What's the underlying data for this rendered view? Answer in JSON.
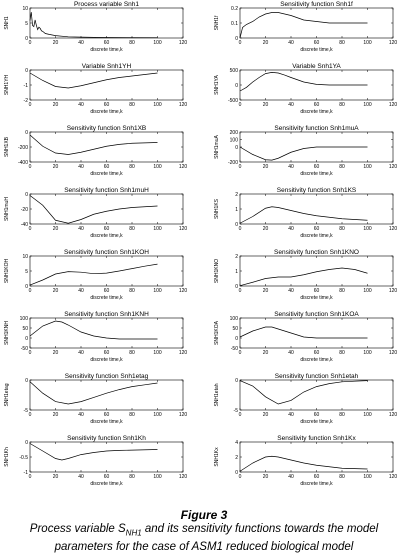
{
  "colors": {
    "line": "#000000",
    "axis": "#000000",
    "background": "#ffffff"
  },
  "caption": {
    "title": "Figure 3",
    "line1_before": "Process variable S",
    "line1_sub": "NH1",
    "line1_after": " and its sensitivity functions towards the model",
    "line2": "parameters for the case of ASM1 reduced biological model"
  },
  "chart_data": [
    {
      "type": "line",
      "title": "Process variable Snh1",
      "xlabel": "discrete time,k",
      "ylabel": "SNH1",
      "xlim": [
        0,
        120
      ],
      "ylim": [
        0,
        10
      ],
      "xticks": [
        0,
        20,
        40,
        60,
        80,
        100,
        120
      ],
      "yticks": [
        0,
        5,
        10
      ],
      "series": [
        {
          "x": [
            0,
            1,
            2,
            3,
            4,
            5,
            6,
            7,
            8,
            9,
            10,
            12,
            15,
            20,
            30,
            50,
            100
          ],
          "y": [
            5.8,
            8.6,
            4.2,
            3.8,
            6.0,
            4.2,
            2.8,
            3.6,
            3.2,
            2.4,
            2.2,
            1.5,
            1.2,
            0.8,
            0.4,
            0.2,
            0.1
          ]
        }
      ]
    },
    {
      "type": "line",
      "title": "Sensitivity function Snh1f",
      "xlabel": "discrete time,k",
      "ylabel": "SNH1f",
      "xlim": [
        0,
        120
      ],
      "ylim": [
        0,
        0.2
      ],
      "xticks": [
        0,
        20,
        40,
        60,
        80,
        100,
        120
      ],
      "yticks": [
        0,
        0.1,
        0.2
      ],
      "series": [
        {
          "x": [
            0,
            2,
            5,
            10,
            15,
            20,
            25,
            30,
            35,
            40,
            50,
            60,
            70,
            80,
            100
          ],
          "y": [
            0.0,
            0.07,
            0.09,
            0.11,
            0.14,
            0.16,
            0.17,
            0.17,
            0.16,
            0.15,
            0.12,
            0.11,
            0.1,
            0.1,
            0.1
          ]
        }
      ]
    },
    {
      "type": "line",
      "title": "Variable Snh1YH",
      "xlabel": "discrete time,k",
      "ylabel": "SNH1YH",
      "xlim": [
        0,
        120
      ],
      "ylim": [
        -2,
        0
      ],
      "xticks": [
        0,
        20,
        40,
        60,
        80,
        100,
        120
      ],
      "yticks": [
        -2,
        -1,
        0
      ],
      "series": [
        {
          "x": [
            0,
            10,
            20,
            30,
            40,
            50,
            60,
            70,
            80,
            90,
            100
          ],
          "y": [
            -0.2,
            -0.7,
            -1.1,
            -1.2,
            -1.05,
            -0.85,
            -0.65,
            -0.5,
            -0.4,
            -0.3,
            -0.2
          ]
        }
      ]
    },
    {
      "type": "line",
      "title": "Variable Snh1YA",
      "xlabel": "discrete time,k",
      "ylabel": "SNH1YA",
      "xlim": [
        0,
        120
      ],
      "ylim": [
        -500,
        500
      ],
      "xticks": [
        0,
        20,
        40,
        60,
        80,
        100,
        120
      ],
      "yticks": [
        -500,
        0,
        500
      ],
      "series": [
        {
          "x": [
            0,
            5,
            10,
            15,
            20,
            25,
            30,
            35,
            40,
            50,
            60,
            70,
            80,
            100
          ],
          "y": [
            -200,
            -80,
            100,
            250,
            380,
            420,
            400,
            330,
            250,
            100,
            20,
            0,
            0,
            0
          ]
        }
      ]
    },
    {
      "type": "line",
      "title": "Sensitivity function Snh1XB",
      "xlabel": "discrete time,k",
      "ylabel": "SNH1XB",
      "xlim": [
        0,
        120
      ],
      "ylim": [
        -400,
        0
      ],
      "xticks": [
        0,
        20,
        40,
        60,
        80,
        100,
        120
      ],
      "yticks": [
        -400,
        -200,
        0
      ],
      "series": [
        {
          "x": [
            0,
            10,
            20,
            30,
            40,
            50,
            60,
            70,
            80,
            100
          ],
          "y": [
            -40,
            -190,
            -280,
            -300,
            -270,
            -230,
            -190,
            -165,
            -150,
            -140
          ]
        }
      ]
    },
    {
      "type": "line",
      "title": "Sensitivity function Snh1muA",
      "xlabel": "discrete time,k",
      "ylabel": "SNH1muA",
      "xlim": [
        0,
        120
      ],
      "ylim": [
        -200,
        200
      ],
      "xticks": [
        0,
        20,
        40,
        60,
        80,
        100,
        120
      ],
      "yticks": [
        -200,
        0,
        100,
        200
      ],
      "series": [
        {
          "x": [
            0,
            10,
            20,
            25,
            30,
            40,
            50,
            60,
            70,
            80,
            100
          ],
          "y": [
            0,
            -100,
            -170,
            -175,
            -150,
            -70,
            -20,
            0,
            0,
            0,
            0
          ]
        }
      ]
    },
    {
      "type": "line",
      "title": "Sensitivity function Snh1muH",
      "xlabel": "discrete time,k",
      "ylabel": "SNH1muH",
      "xlim": [
        0,
        120
      ],
      "ylim": [
        -40,
        0
      ],
      "xticks": [
        0,
        20,
        40,
        60,
        80,
        100,
        120
      ],
      "yticks": [
        -40,
        -20,
        0
      ],
      "series": [
        {
          "x": [
            0,
            10,
            20,
            30,
            40,
            50,
            60,
            70,
            80,
            90,
            100
          ],
          "y": [
            -2,
            -15,
            -35,
            -39,
            -34,
            -27,
            -23,
            -20,
            -18,
            -17,
            -16
          ]
        }
      ]
    },
    {
      "type": "line",
      "title": "Sensitivity function Snh1KS",
      "xlabel": "discrete time,k",
      "ylabel": "SNH1KS",
      "xlim": [
        0,
        120
      ],
      "ylim": [
        0,
        2
      ],
      "xticks": [
        0,
        20,
        40,
        60,
        80,
        100,
        120
      ],
      "yticks": [
        0,
        1,
        2
      ],
      "series": [
        {
          "x": [
            0,
            10,
            20,
            25,
            30,
            40,
            50,
            60,
            70,
            80,
            100
          ],
          "y": [
            0.05,
            0.5,
            1.05,
            1.15,
            1.1,
            0.9,
            0.7,
            0.55,
            0.45,
            0.35,
            0.25
          ]
        }
      ]
    },
    {
      "type": "line",
      "title": "Sensitivity function Snh1KOH",
      "xlabel": "discrete time,k",
      "ylabel": "SNH1KOH",
      "xlim": [
        0,
        120
      ],
      "ylim": [
        0,
        10
      ],
      "xticks": [
        0,
        20,
        40,
        60,
        80,
        100,
        120
      ],
      "yticks": [
        0,
        5,
        10
      ],
      "series": [
        {
          "x": [
            0,
            10,
            20,
            30,
            40,
            50,
            60,
            70,
            80,
            90,
            100
          ],
          "y": [
            0.3,
            2.0,
            4.0,
            4.8,
            4.6,
            4.1,
            4.3,
            5.0,
            5.8,
            6.6,
            7.3
          ]
        }
      ]
    },
    {
      "type": "line",
      "title": "Sensitivity function Snh1KNO",
      "xlabel": "discrete time,k",
      "ylabel": "SNH1KNO",
      "xlim": [
        0,
        120
      ],
      "ylim": [
        0,
        2
      ],
      "xticks": [
        0,
        20,
        40,
        60,
        80,
        100,
        120
      ],
      "yticks": [
        0,
        1,
        2
      ],
      "series": [
        {
          "x": [
            0,
            10,
            20,
            30,
            40,
            50,
            60,
            70,
            80,
            90,
            100
          ],
          "y": [
            0.02,
            0.25,
            0.5,
            0.6,
            0.6,
            0.75,
            0.95,
            1.1,
            1.2,
            1.1,
            0.85
          ]
        }
      ]
    },
    {
      "type": "line",
      "title": "Sensitivity function Snh1KNH",
      "xlabel": "discrete time,k",
      "ylabel": "SNH1KNH",
      "xlim": [
        0,
        120
      ],
      "ylim": [
        -50,
        100
      ],
      "xticks": [
        0,
        20,
        40,
        60,
        80,
        100,
        120
      ],
      "yticks": [
        -50,
        0,
        50,
        100
      ],
      "series": [
        {
          "x": [
            0,
            10,
            20,
            25,
            30,
            40,
            50,
            60,
            70,
            80,
            100
          ],
          "y": [
            10,
            60,
            85,
            80,
            65,
            30,
            10,
            0,
            -5,
            -5,
            -5
          ]
        }
      ]
    },
    {
      "type": "line",
      "title": "Sensitivity function Snh1KOA",
      "xlabel": "discrete time,k",
      "ylabel": "SNH1KOA",
      "xlim": [
        0,
        120
      ],
      "ylim": [
        -50,
        100
      ],
      "xticks": [
        0,
        20,
        40,
        60,
        80,
        100,
        120
      ],
      "yticks": [
        -50,
        0,
        50,
        100
      ],
      "series": [
        {
          "x": [
            0,
            10,
            20,
            25,
            30,
            40,
            50,
            60,
            70,
            80,
            100
          ],
          "y": [
            5,
            35,
            55,
            55,
            45,
            25,
            5,
            0,
            0,
            0,
            0
          ]
        }
      ]
    },
    {
      "type": "line",
      "title": "Sensitivity function Snh1etag",
      "xlabel": "discrete time,k",
      "ylabel": "SNH1etag",
      "xlim": [
        0,
        120
      ],
      "ylim": [
        -5,
        0
      ],
      "xticks": [
        0,
        20,
        40,
        60,
        80,
        100,
        120
      ],
      "yticks": [
        -5,
        0
      ],
      "series": [
        {
          "x": [
            0,
            10,
            20,
            30,
            40,
            50,
            60,
            70,
            80,
            90,
            100
          ],
          "y": [
            -0.3,
            -2.2,
            -3.6,
            -4.0,
            -3.6,
            -2.9,
            -2.2,
            -1.6,
            -1.1,
            -0.8,
            -0.5
          ]
        }
      ]
    },
    {
      "type": "line",
      "title": "Sensitivity function Snh1etah",
      "xlabel": "discrete time,k",
      "ylabel": "SNH1etah",
      "xlim": [
        0,
        120
      ],
      "ylim": [
        -5,
        0
      ],
      "xticks": [
        0,
        20,
        40,
        60,
        80,
        100,
        120
      ],
      "yticks": [
        -5,
        0
      ],
      "series": [
        {
          "x": [
            0,
            10,
            20,
            30,
            40,
            50,
            60,
            70,
            80,
            90,
            100
          ],
          "y": [
            -0.1,
            -1.0,
            -2.8,
            -4.0,
            -3.4,
            -2.0,
            -1.1,
            -0.6,
            -0.3,
            -0.2,
            -0.1
          ]
        }
      ]
    },
    {
      "type": "line",
      "title": "Sensitivity function Snh1Kh",
      "xlabel": "discrete time,k",
      "ylabel": "SNH1Kh",
      "xlim": [
        0,
        120
      ],
      "ylim": [
        -1,
        0
      ],
      "xticks": [
        0,
        20,
        40,
        60,
        80,
        100,
        120
      ],
      "yticks": [
        -1,
        -0.5,
        0
      ],
      "series": [
        {
          "x": [
            0,
            10,
            20,
            25,
            30,
            40,
            50,
            60,
            70,
            80,
            100
          ],
          "y": [
            -0.05,
            -0.3,
            -0.55,
            -0.6,
            -0.55,
            -0.42,
            -0.35,
            -0.3,
            -0.28,
            -0.27,
            -0.25
          ]
        }
      ]
    },
    {
      "type": "line",
      "title": "Sensitivity function Snh1Kx",
      "xlabel": "discrete time,k",
      "ylabel": "SNH1Kx",
      "xlim": [
        0,
        120
      ],
      "ylim": [
        0,
        4
      ],
      "xticks": [
        0,
        20,
        40,
        60,
        80,
        100,
        120
      ],
      "yticks": [
        0,
        2,
        4
      ],
      "series": [
        {
          "x": [
            0,
            10,
            20,
            25,
            30,
            40,
            50,
            60,
            70,
            80,
            100
          ],
          "y": [
            0.1,
            1.2,
            2.0,
            2.1,
            2.0,
            1.6,
            1.2,
            0.9,
            0.7,
            0.5,
            0.4
          ]
        }
      ]
    }
  ]
}
